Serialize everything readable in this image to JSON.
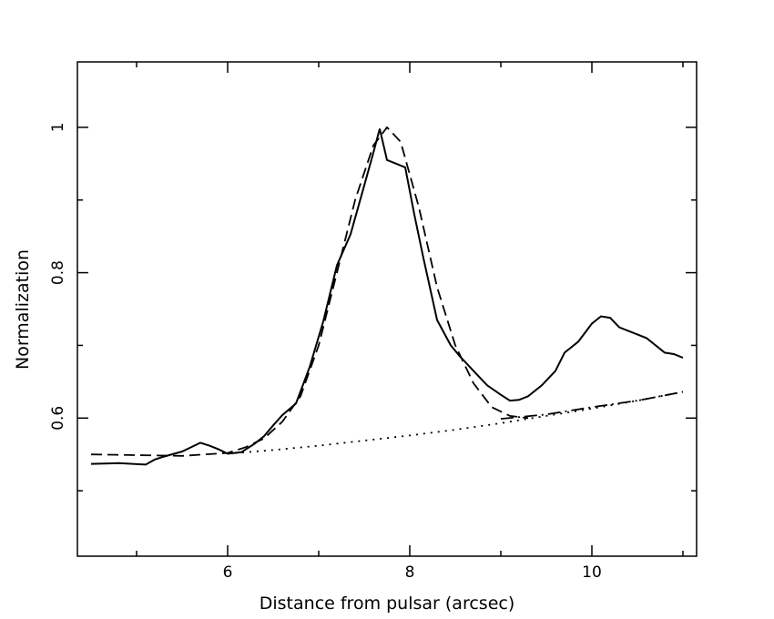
{
  "chart_data": {
    "type": "line",
    "xlabel": "Distance from pulsar (arcsec)",
    "ylabel": "Normalization",
    "xlim": [
      4.35,
      11.15
    ],
    "ylim": [
      0.41,
      1.09
    ],
    "x_major_ticks": [
      6,
      8,
      10
    ],
    "x_tick_labels": [
      "6",
      "8",
      "10"
    ],
    "x_minor_ticks": [
      5,
      7,
      9,
      11
    ],
    "y_major_ticks": [
      0.6,
      0.8,
      1.0
    ],
    "y_tick_labels": [
      "0.6",
      "0.8",
      "1"
    ],
    "y_minor_ticks": [
      0.5,
      0.7,
      0.9
    ],
    "grid": false,
    "series": [
      {
        "style": "solid",
        "x": [
          4.5,
          4.8,
          5.1,
          5.2,
          5.3,
          5.5,
          5.7,
          5.8,
          5.9,
          6.0,
          6.15,
          6.3,
          6.4,
          6.5,
          6.6,
          6.75,
          6.9,
          7.05,
          7.2,
          7.35,
          7.5,
          7.6,
          7.67,
          7.75,
          7.85,
          7.95,
          8.05,
          8.15,
          8.3,
          8.45,
          8.55,
          8.7,
          8.85,
          9.0,
          9.1,
          9.2,
          9.3,
          9.45,
          9.6,
          9.7,
          9.85,
          10.0,
          10.1,
          10.2,
          10.3,
          10.5,
          10.6,
          10.7,
          10.8,
          10.9,
          11.0
        ],
        "y": [
          0.537,
          0.538,
          0.536,
          0.543,
          0.547,
          0.554,
          0.566,
          0.562,
          0.557,
          0.551,
          0.553,
          0.565,
          0.575,
          0.59,
          0.604,
          0.62,
          0.67,
          0.733,
          0.81,
          0.853,
          0.92,
          0.965,
          0.998,
          0.955,
          0.95,
          0.945,
          0.88,
          0.82,
          0.735,
          0.7,
          0.685,
          0.665,
          0.645,
          0.632,
          0.624,
          0.625,
          0.63,
          0.645,
          0.665,
          0.69,
          0.705,
          0.73,
          0.74,
          0.738,
          0.725,
          0.715,
          0.71,
          0.7,
          0.69,
          0.688,
          0.683
        ]
      },
      {
        "style": "dashed",
        "x": [
          4.5,
          5.0,
          5.5,
          6.0,
          6.2,
          6.4,
          6.6,
          6.8,
          7.0,
          7.2,
          7.4,
          7.6,
          7.75,
          7.9,
          8.1,
          8.3,
          8.5,
          8.7,
          8.9,
          9.1,
          9.3
        ],
        "y": [
          0.55,
          0.549,
          0.548,
          0.552,
          0.56,
          0.572,
          0.595,
          0.63,
          0.7,
          0.8,
          0.9,
          0.975,
          1.0,
          0.98,
          0.89,
          0.78,
          0.7,
          0.648,
          0.615,
          0.603,
          0.6
        ]
      },
      {
        "style": "dotted",
        "x": [
          6.0,
          6.5,
          7.0,
          7.5,
          8.0,
          8.5,
          9.0,
          9.5,
          10.0,
          10.5,
          11.0
        ],
        "y": [
          0.551,
          0.556,
          0.562,
          0.569,
          0.576,
          0.584,
          0.593,
          0.603,
          0.613,
          0.624,
          0.636
        ]
      },
      {
        "style": "dash-dot",
        "x": [
          9.0,
          9.5,
          10.0,
          10.5,
          11.0
        ],
        "y": [
          0.599,
          0.605,
          0.615,
          0.624,
          0.636
        ]
      }
    ]
  }
}
